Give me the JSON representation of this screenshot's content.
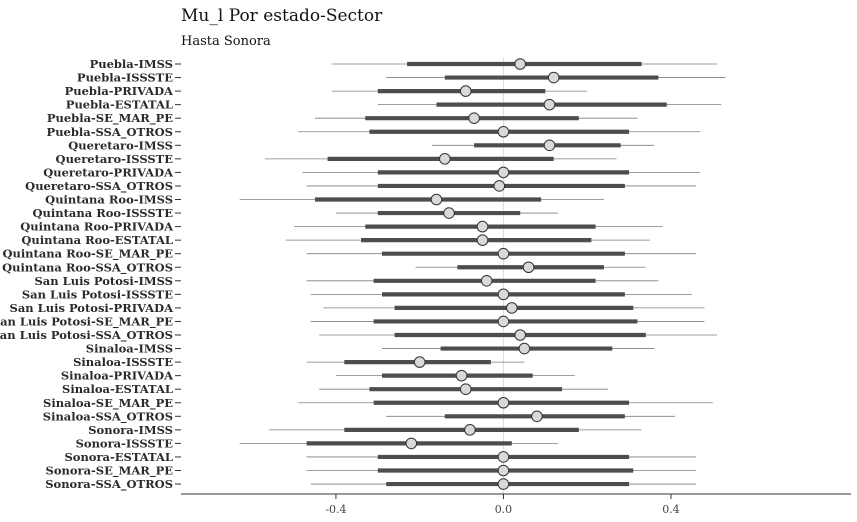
{
  "chart_data": {
    "type": "forest",
    "title": "Mu_l Por estado-Sector",
    "subtitle": "Hasta Sonora",
    "xlabel": "",
    "ylabel": "",
    "xlim": [
      -0.77,
      0.83
    ],
    "xticks": [
      -0.4,
      0.0,
      0.4
    ],
    "xtick_labels": [
      "-0.4",
      "0.0",
      "0.4"
    ],
    "reference_line": 0.0,
    "grid": false,
    "colors": {
      "thick_interval": "#4d4d4d",
      "thin_interval": "#7f7f7f",
      "point_fill": "#d9d9d9",
      "point_stroke": "#333333",
      "reference_line": "#dddddd"
    },
    "categories": [
      "Puebla-IMSS",
      "Puebla-ISSSTE",
      "Puebla-PRIVADA",
      "Puebla-ESTATAL",
      "Puebla-SE_MAR_PE",
      "Puebla-SSA_OTROS",
      "Queretaro-IMSS",
      "Queretaro-ISSSTE",
      "Queretaro-PRIVADA",
      "Queretaro-SSA_OTROS",
      "Quintana Roo-IMSS",
      "Quintana Roo-ISSSTE",
      "Quintana Roo-PRIVADA",
      "Quintana Roo-ESTATAL",
      "Quintana Roo-SE_MAR_PE",
      "Quintana Roo-SSA_OTROS",
      "San Luis Potosi-IMSS",
      "San Luis Potosi-ISSSTE",
      "San Luis Potosi-PRIVADA",
      "San Luis Potosi-SE_MAR_PE",
      "San Luis Potosi-SSA_OTROS",
      "Sinaloa-IMSS",
      "Sinaloa-ISSSTE",
      "Sinaloa-PRIVADA",
      "Sinaloa-ESTATAL",
      "Sinaloa-SE_MAR_PE",
      "Sinaloa-SSA_OTROS",
      "Sonora-IMSS",
      "Sonora-ISSSTE",
      "Sonora-ESTATAL",
      "Sonora-SE_MAR_PE",
      "Sonora-SSA_OTROS"
    ],
    "estimate": [
      0.04,
      0.12,
      -0.09,
      0.11,
      -0.07,
      0.0,
      0.11,
      -0.14,
      0.0,
      -0.01,
      -0.16,
      -0.13,
      -0.05,
      -0.05,
      0.0,
      0.06,
      -0.04,
      0.0,
      0.02,
      0.0,
      0.04,
      0.05,
      -0.2,
      -0.1,
      -0.09,
      0.0,
      0.08,
      -0.08,
      -0.22,
      0.0,
      0.0,
      0.0
    ],
    "inner_low": [
      -0.23,
      -0.14,
      -0.3,
      -0.16,
      -0.33,
      -0.32,
      -0.07,
      -0.42,
      -0.3,
      -0.3,
      -0.45,
      -0.3,
      -0.33,
      -0.34,
      -0.29,
      -0.11,
      -0.31,
      -0.29,
      -0.26,
      -0.31,
      -0.26,
      -0.15,
      -0.38,
      -0.29,
      -0.32,
      -0.31,
      -0.14,
      -0.38,
      -0.47,
      -0.3,
      -0.3,
      -0.28
    ],
    "inner_high": [
      0.33,
      0.37,
      0.1,
      0.39,
      0.18,
      0.3,
      0.28,
      0.12,
      0.3,
      0.29,
      0.09,
      0.04,
      0.22,
      0.21,
      0.29,
      0.24,
      0.22,
      0.29,
      0.31,
      0.32,
      0.34,
      0.26,
      -0.03,
      0.07,
      0.14,
      0.3,
      0.29,
      0.18,
      0.02,
      0.3,
      0.31,
      0.3
    ],
    "outer_low": [
      -0.41,
      -0.28,
      -0.41,
      -0.3,
      -0.45,
      -0.49,
      -0.17,
      -0.57,
      -0.48,
      -0.47,
      -0.63,
      -0.4,
      -0.5,
      -0.52,
      -0.47,
      -0.21,
      -0.47,
      -0.46,
      -0.43,
      -0.46,
      -0.44,
      -0.29,
      -0.47,
      -0.4,
      -0.44,
      -0.49,
      -0.28,
      -0.56,
      -0.63,
      -0.47,
      -0.47,
      -0.46
    ],
    "outer_high": [
      0.51,
      0.53,
      0.2,
      0.52,
      0.32,
      0.47,
      0.36,
      0.27,
      0.47,
      0.46,
      0.24,
      0.13,
      0.38,
      0.35,
      0.46,
      0.34,
      0.37,
      0.45,
      0.48,
      0.48,
      0.51,
      0.36,
      0.05,
      0.17,
      0.25,
      0.5,
      0.41,
      0.33,
      0.13,
      0.46,
      0.46,
      0.46
    ]
  }
}
